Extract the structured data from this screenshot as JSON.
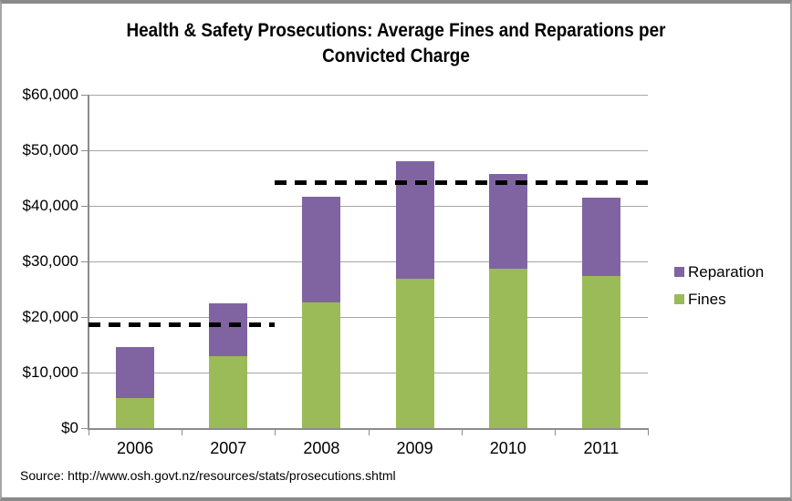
{
  "title_lines": [
    "Health & Safety Prosecutions: Average Fines and Reparations per",
    "Convicted Charge"
  ],
  "source": "Source: http://www.osh.govt.nz/resources/stats/prosecutions.shtml",
  "colors": {
    "fines": "#9BBB59",
    "reparation": "#8064A2",
    "gridline": "#A6A6A6",
    "axis": "#8C8C8C",
    "dashed_line": "#000000",
    "background": "#FFFFFF"
  },
  "chart_data": {
    "type": "bar",
    "stacked": true,
    "title": "Health & Safety Prosecutions: Average Fines and Reparations per Convicted Charge",
    "xlabel": "",
    "ylabel": "",
    "categories": [
      "2006",
      "2007",
      "2008",
      "2009",
      "2010",
      "2011"
    ],
    "series": [
      {
        "name": "Fines",
        "color": "#9BBB59",
        "values": [
          5400,
          13000,
          22600,
          26900,
          28700,
          27400
        ]
      },
      {
        "name": "Reparation",
        "color": "#8064A2",
        "values": [
          9200,
          9500,
          19100,
          21200,
          17100,
          14000
        ]
      }
    ],
    "ylim": [
      0,
      60000
    ],
    "ytick_values": [
      0,
      10000,
      20000,
      30000,
      40000,
      50000,
      60000
    ],
    "ytick_labels": [
      "$0",
      "$10,000",
      "$20,000",
      "$30,000",
      "$40,000",
      "$50,000",
      "$60,000"
    ],
    "grid": true,
    "legend_position": "right",
    "legend_order": [
      "Reparation",
      "Fines"
    ],
    "annotations": [
      {
        "type": "dashed-line",
        "value": 18700,
        "spans_categories": [
          "2006",
          "2007"
        ],
        "color": "#000000"
      },
      {
        "type": "dashed-line",
        "value": 44300,
        "spans_categories": [
          "2008",
          "2011"
        ],
        "color": "#000000"
      }
    ]
  }
}
